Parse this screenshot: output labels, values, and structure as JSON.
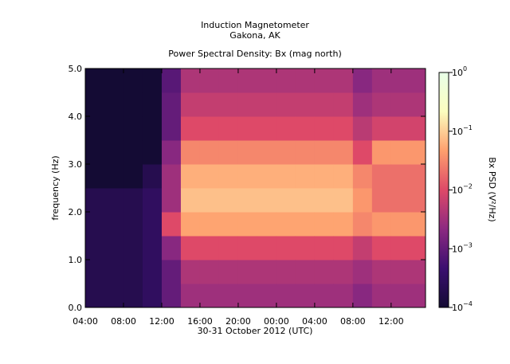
{
  "chart_data": {
    "type": "spectrogram",
    "title": "Induction Magnetometer",
    "subtitle": "Gakona, AK",
    "plot_title": "Power Spectral Density: Bx (mag north)",
    "xlabel": "30-31 October 2012 (UTC)",
    "ylabel": "frequency (Hz)",
    "xlim": [
      4,
      39.6
    ],
    "xticks": [
      {
        "value": 4,
        "label": "04:00"
      },
      {
        "value": 8,
        "label": "08:00"
      },
      {
        "value": 12,
        "label": "12:00"
      },
      {
        "value": 16,
        "label": "16:00"
      },
      {
        "value": 20,
        "label": "20:00"
      },
      {
        "value": 24,
        "label": "00:00"
      },
      {
        "value": 28,
        "label": "04:00"
      },
      {
        "value": 32,
        "label": "08:00"
      },
      {
        "value": 36,
        "label": "12:00"
      }
    ],
    "ylim": [
      0,
      5
    ],
    "yticks": [
      {
        "value": 0,
        "label": "0.0"
      },
      {
        "value": 1,
        "label": "1.0"
      },
      {
        "value": 2,
        "label": "2.0"
      },
      {
        "value": 3,
        "label": "3.0"
      },
      {
        "value": 4,
        "label": "4.0"
      },
      {
        "value": 5,
        "label": "5.0"
      }
    ],
    "x": [
      5,
      7,
      9,
      11,
      13,
      15,
      17,
      19,
      21,
      23,
      25,
      27,
      29,
      31,
      33,
      35,
      37,
      39
    ],
    "y": [
      0.25,
      0.75,
      1.25,
      1.75,
      2.25,
      2.75,
      3.25,
      3.75,
      4.25,
      4.75
    ],
    "values": [
      [
        0.0002,
        0.0002,
        0.0002,
        0.0002,
        0.0002,
        0.0001,
        0.0001,
        0.0001,
        0.0001,
        0.0001
      ],
      [
        0.0002,
        0.0002,
        0.0002,
        0.0002,
        0.0002,
        0.0001,
        0.0001,
        0.0001,
        0.0001,
        0.0001
      ],
      [
        0.0002,
        0.0002,
        0.0002,
        0.0002,
        0.0002,
        0.0001,
        0.0001,
        0.0001,
        0.0001,
        0.0001
      ],
      [
        0.0003,
        0.0003,
        0.0003,
        0.0003,
        0.0003,
        0.0002,
        0.0001,
        0.0001,
        0.0001,
        0.0001
      ],
      [
        0.001,
        0.001,
        0.002,
        0.01,
        0.003,
        0.003,
        0.002,
        0.001,
        0.001,
        0.0008
      ],
      [
        0.003,
        0.004,
        0.01,
        0.05,
        0.08,
        0.06,
        0.03,
        0.01,
        0.006,
        0.004
      ],
      [
        0.003,
        0.004,
        0.01,
        0.05,
        0.08,
        0.06,
        0.03,
        0.01,
        0.006,
        0.004
      ],
      [
        0.003,
        0.004,
        0.01,
        0.05,
        0.08,
        0.06,
        0.03,
        0.01,
        0.006,
        0.004
      ],
      [
        0.003,
        0.004,
        0.01,
        0.05,
        0.08,
        0.06,
        0.03,
        0.01,
        0.006,
        0.004
      ],
      [
        0.003,
        0.004,
        0.01,
        0.05,
        0.08,
        0.06,
        0.03,
        0.01,
        0.006,
        0.004
      ],
      [
        0.003,
        0.004,
        0.01,
        0.05,
        0.08,
        0.06,
        0.03,
        0.01,
        0.006,
        0.004
      ],
      [
        0.003,
        0.004,
        0.01,
        0.05,
        0.08,
        0.06,
        0.03,
        0.01,
        0.006,
        0.004
      ],
      [
        0.003,
        0.004,
        0.01,
        0.05,
        0.08,
        0.06,
        0.03,
        0.01,
        0.006,
        0.004
      ],
      [
        0.003,
        0.004,
        0.01,
        0.05,
        0.08,
        0.06,
        0.03,
        0.01,
        0.006,
        0.004
      ],
      [
        0.002,
        0.003,
        0.006,
        0.03,
        0.04,
        0.03,
        0.01,
        0.005,
        0.003,
        0.002
      ],
      [
        0.003,
        0.004,
        0.01,
        0.04,
        0.02,
        0.02,
        0.04,
        0.008,
        0.004,
        0.003
      ],
      [
        0.003,
        0.004,
        0.01,
        0.04,
        0.02,
        0.02,
        0.04,
        0.008,
        0.004,
        0.003
      ],
      [
        0.003,
        0.004,
        0.01,
        0.04,
        0.02,
        0.02,
        0.04,
        0.008,
        0.004,
        0.003
      ]
    ],
    "colorbar": {
      "label": "Bx PSD (V²/Hz)",
      "log": true,
      "lim": [
        0.0001,
        1
      ],
      "ticks": [
        {
          "value": 0.0001,
          "label": "10",
          "exponent": "−4"
        },
        {
          "value": 0.001,
          "label": "10",
          "exponent": "−3"
        },
        {
          "value": 0.01,
          "label": "10",
          "exponent": "−2"
        },
        {
          "value": 0.1,
          "label": "10",
          "exponent": "−1"
        },
        {
          "value": 1,
          "label": "10",
          "exponent": "0"
        }
      ],
      "colors": [
        "#140b34",
        "#3b0f70",
        "#8c2981",
        "#de4968",
        "#fe9f6d",
        "#fcfdbf",
        "#e8ffe8"
      ]
    }
  }
}
